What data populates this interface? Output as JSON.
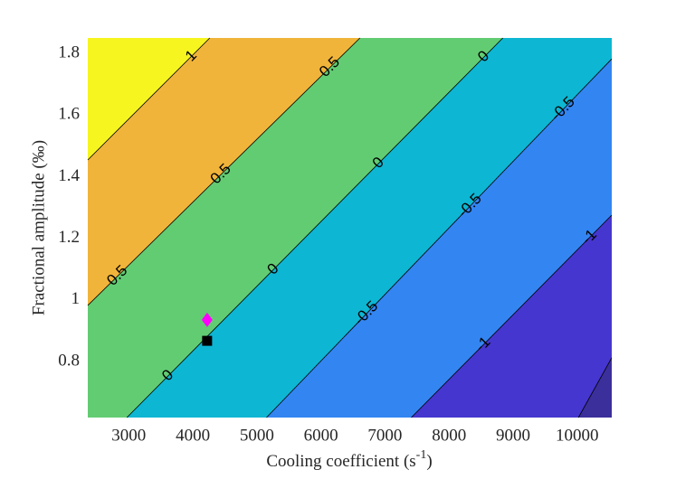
{
  "chart_data": {
    "type": "contour",
    "xlabel": [
      "Cooling coefficient (s",
      "-1",
      ")"
    ],
    "ylabel": "Fractional amplitude (‰)",
    "xlim": [
      2360,
      10540
    ],
    "ylim": [
      0.618,
      1.85
    ],
    "xticks": [
      3000,
      4000,
      5000,
      6000,
      7000,
      8000,
      9000,
      10000
    ],
    "yticks": [
      0.8,
      1,
      1.2,
      1.4,
      1.6,
      1.8
    ],
    "band_colors": [
      "#3b2f9c",
      "#4536cf",
      "#3385f2",
      "#0db6d3",
      "#62cc73",
      "#f1b43a",
      "#f6f51f"
    ],
    "line_color": "#000000",
    "contours": [
      {
        "level": -1.5,
        "x": [
          10020,
          10540
        ],
        "y": [
          0.618,
          0.812
        ]
      },
      {
        "level": -1,
        "x": [
          7410,
          10540
        ],
        "y": [
          0.618,
          1.275
        ]
      },
      {
        "level": -0.5,
        "x": [
          5150,
          10540
        ],
        "y": [
          0.618,
          1.782
        ]
      },
      {
        "level": 0,
        "x": [
          2970,
          8840
        ],
        "y": [
          0.618,
          1.85
        ]
      },
      {
        "level": 0.5,
        "x": [
          2360,
          6610
        ],
        "y": [
          0.982,
          1.85
        ]
      },
      {
        "level": 1,
        "x": [
          2360,
          4265
        ],
        "y": [
          1.454,
          1.85
        ]
      }
    ],
    "points": [
      {
        "x": 4223,
        "y": 0.935,
        "color": "#ff00ff",
        "marker": "diamond"
      },
      {
        "x": 4223,
        "y": 0.867,
        "color": "#000000",
        "marker": "square"
      }
    ]
  }
}
